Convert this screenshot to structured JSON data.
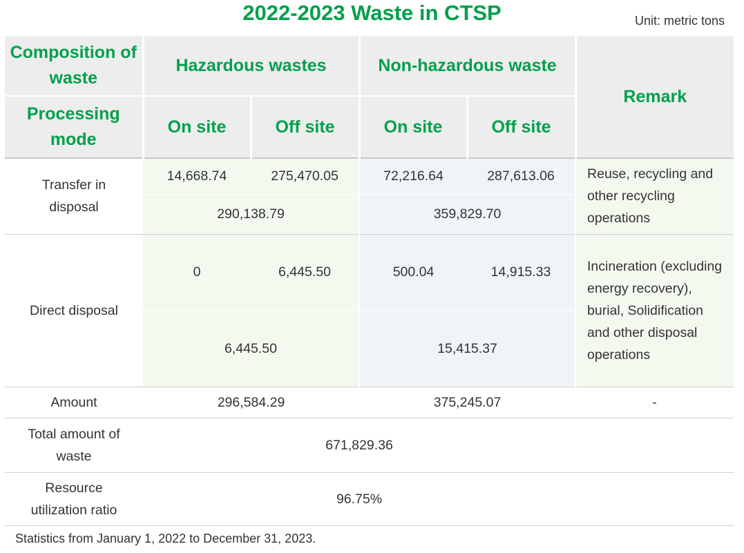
{
  "title": "2022-2023 Waste in CTSP",
  "unit": "Unit: metric tons",
  "header": {
    "composition_label": "Composition of waste",
    "hazardous": "Hazardous wastes",
    "non_hazardous": "Non-hazardous waste",
    "remark": "Remark",
    "processing_label": "Processing mode",
    "on_site_1": "On site",
    "off_site_1": "Off site",
    "on_site_2": "On site",
    "off_site_2": "Off site"
  },
  "transfer": {
    "label": "Transfer in disposal",
    "haz_on": "14,668.74",
    "haz_off": "275,470.05",
    "non_on": "72,216.64",
    "non_off": "287,613.06",
    "haz_total": "290,138.79",
    "non_total": "359,829.70",
    "remark": "Reuse, recycling and other recycling operations"
  },
  "direct": {
    "label": "Direct disposal",
    "haz_on": "0",
    "haz_off": "6,445.50",
    "non_on": "500.04",
    "non_off": "14,915.33",
    "haz_total": "6,445.50",
    "non_total": "15,415.37",
    "remark": "Incineration (excluding energy recovery), burial, Solidification and other disposal operations"
  },
  "amount": {
    "label": "Amount",
    "haz": "296,584.29",
    "non": "375,245.07",
    "remark": "-"
  },
  "total": {
    "label": "Total amount of waste",
    "value": "671,829.36"
  },
  "ratio": {
    "label": "Resource utilization ratio",
    "value": "96.75%"
  },
  "footnote": "Statistics from January 1, 2022 to December 31, 2023."
}
